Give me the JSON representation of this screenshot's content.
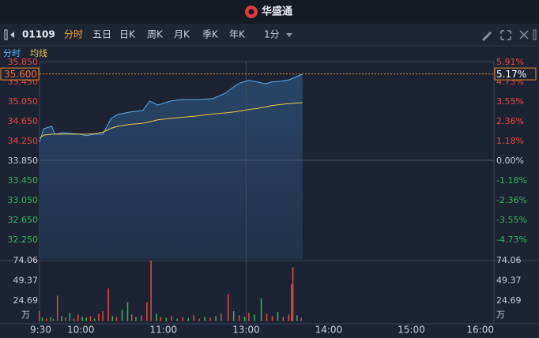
{
  "ui": {
    "brand": "华盛通",
    "symbol": "01109",
    "tabs": [
      "分时",
      "五日",
      "日K",
      "周K",
      "月K",
      "季K",
      "年K"
    ],
    "period": "1分"
  },
  "chart_data": {
    "type": "line",
    "x": [
      0,
      3,
      9,
      11,
      17,
      29,
      34,
      40,
      46,
      52,
      57,
      66,
      75,
      80,
      86,
      95,
      103,
      115,
      126,
      135,
      141,
      146,
      152,
      158,
      164,
      169,
      175,
      181,
      187,
      191
    ],
    "series": [
      {
        "name": "分时",
        "color": "#5aa9ea",
        "values": [
          34.22,
          34.49,
          34.54,
          34.38,
          34.41,
          34.38,
          34.35,
          34.38,
          34.38,
          34.7,
          34.78,
          34.83,
          34.86,
          35.05,
          34.97,
          35.05,
          35.08,
          35.08,
          35.1,
          35.21,
          35.34,
          35.42,
          35.47,
          35.44,
          35.4,
          35.44,
          35.45,
          35.48,
          35.55,
          35.6
        ]
      },
      {
        "name": "均线",
        "color": "#e9c84f",
        "values": [
          34.3,
          34.36,
          34.38,
          34.38,
          34.38,
          34.38,
          34.38,
          34.39,
          34.42,
          34.5,
          34.54,
          34.58,
          34.6,
          34.63,
          34.67,
          34.7,
          34.72,
          34.75,
          34.79,
          34.81,
          34.83,
          34.85,
          34.88,
          34.9,
          34.93,
          34.96,
          34.98,
          35.0,
          35.01,
          35.02
        ]
      }
    ],
    "xlim": [
      0,
      330
    ],
    "xticks": [
      {
        "value": 0,
        "label": "9:30"
      },
      {
        "value": 30,
        "label": "10:00"
      },
      {
        "value": 90,
        "label": "11:00"
      },
      {
        "value": 150,
        "label": "13:00"
      },
      {
        "value": 210,
        "label": "14:00"
      },
      {
        "value": 270,
        "label": "15:00"
      },
      {
        "value": 330,
        "label": "16:00"
      }
    ],
    "ylim": [
      31.85,
      35.85
    ],
    "yticks": [
      {
        "value": 35.85,
        "label": "35.850"
      },
      {
        "value": 35.45,
        "label": "35.450"
      },
      {
        "value": 35.05,
        "label": "35.050"
      },
      {
        "value": 34.65,
        "label": "34.650"
      },
      {
        "value": 34.25,
        "label": "34.250"
      },
      {
        "value": 33.85,
        "label": "33.850"
      },
      {
        "value": 33.45,
        "label": "33.450"
      },
      {
        "value": 33.05,
        "label": "33.050"
      },
      {
        "value": 32.65,
        "label": "32.650"
      },
      {
        "value": 32.25,
        "label": "32.250"
      }
    ],
    "y2lim": [
      -5.91,
      5.91
    ],
    "y2ticks": [
      {
        "value": 5.91,
        "label": "5.91%"
      },
      {
        "value": 4.73,
        "label": "4.73%"
      },
      {
        "value": 3.55,
        "label": "3.55%"
      },
      {
        "value": 2.36,
        "label": "2.36%"
      },
      {
        "value": 1.18,
        "label": "1.18%"
      },
      {
        "value": 0,
        "label": "0.00%"
      },
      {
        "value": -1.18,
        "label": "-1.18%"
      },
      {
        "value": -2.36,
        "label": "-2.36%"
      },
      {
        "value": -3.55,
        "label": "-3.55%"
      },
      {
        "value": -4.73,
        "label": "-4.73%"
      }
    ],
    "last_price": {
      "value": 35.6,
      "label": "35.600"
    },
    "last_change": {
      "value": 5.17,
      "label": "5.17%"
    },
    "up_color": "#e5483f",
    "down_color": "#35b35a",
    "volume": {
      "unit": "万",
      "x": [
        0,
        2,
        5,
        8,
        10,
        13,
        16,
        19,
        22,
        25,
        28,
        31,
        34,
        37,
        40,
        43,
        46,
        50,
        53,
        56,
        60,
        64,
        67,
        70,
        74,
        78,
        81,
        85,
        88,
        92,
        96,
        100,
        104,
        108,
        112,
        116,
        120,
        124,
        128,
        132,
        137,
        141,
        145,
        149,
        152,
        156,
        161,
        165,
        169,
        173,
        177,
        181,
        183,
        184,
        187,
        190
      ],
      "values": [
        12,
        4,
        3,
        5,
        3,
        31,
        6,
        4,
        10,
        3,
        8,
        5,
        4,
        6,
        3,
        9,
        12,
        40,
        6,
        5,
        14,
        23,
        8,
        5,
        7,
        23,
        74,
        9,
        5,
        4,
        6,
        3,
        5,
        4,
        7,
        3,
        5,
        4,
        6,
        9,
        33,
        12,
        7,
        5,
        10,
        8,
        28,
        9,
        6,
        11,
        5,
        8,
        45,
        66,
        7,
        4
      ],
      "colors": [
        "#e5483f",
        "#35b35a",
        "#e5483f",
        "#35b35a",
        "#e5483f",
        "#e5483f",
        "#35b35a",
        "#e5483f",
        "#35b35a",
        "#e5483f",
        "#e5483f",
        "#35b35a",
        "#35b35a",
        "#e5483f",
        "#35b35a",
        "#e5483f",
        "#e5483f",
        "#e5483f",
        "#35b35a",
        "#e5483f",
        "#35b35a",
        "#35b35a",
        "#e5483f",
        "#35b35a",
        "#e5483f",
        "#e5483f",
        "#e5483f",
        "#35b35a",
        "#e5483f",
        "#35b35a",
        "#e5483f",
        "#35b35a",
        "#e5483f",
        "#35b35a",
        "#e5483f",
        "#e5483f",
        "#35b35a",
        "#e5483f",
        "#35b35a",
        "#e5483f",
        "#e5483f",
        "#35b35a",
        "#e5483f",
        "#35b35a",
        "#e5483f",
        "#35b35a",
        "#35b35a",
        "#e5483f",
        "#e5483f",
        "#35b35a",
        "#e5483f",
        "#e5483f",
        "#e5483f",
        "#e5483f",
        "#35b35a",
        "#e5483f"
      ],
      "ylim": [
        0,
        74.06
      ],
      "yticks": [
        74.06,
        49.37,
        24.69
      ]
    }
  }
}
